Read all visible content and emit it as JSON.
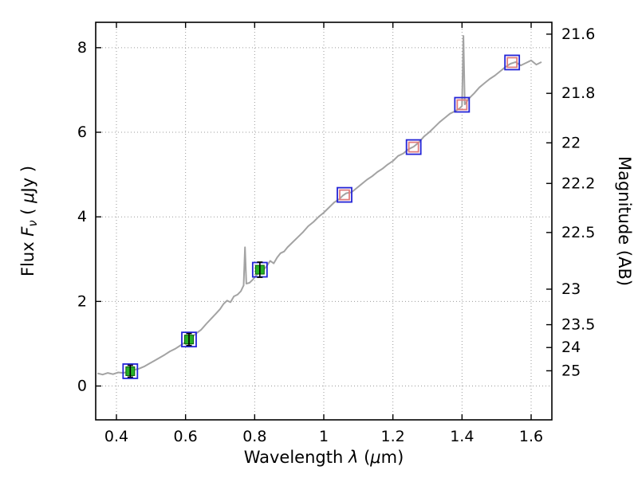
{
  "figure": {
    "background": "#ffffff"
  },
  "chart_data": {
    "type": "line+scatter",
    "title": "",
    "xlabel": "Wavelength λ (μm)",
    "ylabel": "Flux Fν ( μJy )",
    "ylabel_right": "Magnitude (AB)",
    "xlabel_parts": [
      {
        "t": "Wavelength  ",
        "i": false
      },
      {
        "t": "λ",
        "i": true
      },
      {
        "t": " (",
        "i": false
      },
      {
        "t": "μ",
        "i": true
      },
      {
        "t": "m)",
        "i": false
      }
    ],
    "ylabel_parts": [
      {
        "t": "Flux  ",
        "i": false
      },
      {
        "t": "F",
        "i": true
      },
      {
        "t": "ν",
        "i": true,
        "sub": true
      },
      {
        "t": "  ( ",
        "i": false
      },
      {
        "t": "μ",
        "i": true
      },
      {
        "t": "Jy )",
        "i": false
      }
    ],
    "xlim": [
      0.34,
      1.66
    ],
    "ylim": [
      -0.8,
      8.6
    ],
    "x_ticks": [
      {
        "v": 0.4,
        "label": "0.4"
      },
      {
        "v": 0.6,
        "label": "0.6"
      },
      {
        "v": 0.8,
        "label": "0.8"
      },
      {
        "v": 1.0,
        "label": "1"
      },
      {
        "v": 1.2,
        "label": "1.2"
      },
      {
        "v": 1.4,
        "label": "1.4"
      },
      {
        "v": 1.6,
        "label": "1.6"
      }
    ],
    "y_ticks_left": [
      {
        "v": 0,
        "label": "0"
      },
      {
        "v": 2,
        "label": "2"
      },
      {
        "v": 4,
        "label": "4"
      },
      {
        "v": 6,
        "label": "6"
      },
      {
        "v": 8,
        "label": "8"
      }
    ],
    "y_ticks_right": [
      {
        "flux": 8.32,
        "label": "21.6"
      },
      {
        "flux": 6.92,
        "label": "21.8"
      },
      {
        "flux": 5.75,
        "label": "22"
      },
      {
        "flux": 4.79,
        "label": "22.2"
      },
      {
        "flux": 3.63,
        "label": "22.5"
      },
      {
        "flux": 2.29,
        "label": "23"
      },
      {
        "flux": 1.45,
        "label": "23.5"
      },
      {
        "flux": 0.91,
        "label": "24"
      },
      {
        "flux": 0.36,
        "label": "25"
      }
    ],
    "grid": {
      "style": "dotted",
      "color": "#9a9a9a"
    },
    "spectrum": {
      "color": "#a3a3a3",
      "points": [
        [
          0.345,
          0.3
        ],
        [
          0.36,
          0.27
        ],
        [
          0.375,
          0.31
        ],
        [
          0.39,
          0.28
        ],
        [
          0.405,
          0.32
        ],
        [
          0.42,
          0.31
        ],
        [
          0.435,
          0.34
        ],
        [
          0.45,
          0.38
        ],
        [
          0.465,
          0.41
        ],
        [
          0.48,
          0.46
        ],
        [
          0.495,
          0.53
        ],
        [
          0.51,
          0.6
        ],
        [
          0.525,
          0.67
        ],
        [
          0.54,
          0.74
        ],
        [
          0.555,
          0.82
        ],
        [
          0.57,
          0.88
        ],
        [
          0.585,
          0.96
        ],
        [
          0.6,
          1.04
        ],
        [
          0.615,
          1.12
        ],
        [
          0.63,
          1.24
        ],
        [
          0.645,
          1.33
        ],
        [
          0.66,
          1.47
        ],
        [
          0.675,
          1.6
        ],
        [
          0.69,
          1.73
        ],
        [
          0.7,
          1.82
        ],
        [
          0.71,
          1.94
        ],
        [
          0.72,
          2.02
        ],
        [
          0.73,
          1.98
        ],
        [
          0.74,
          2.12
        ],
        [
          0.75,
          2.16
        ],
        [
          0.76,
          2.24
        ],
        [
          0.768,
          2.38
        ],
        [
          0.772,
          3.28
        ],
        [
          0.776,
          2.42
        ],
        [
          0.785,
          2.44
        ],
        [
          0.795,
          2.52
        ],
        [
          0.805,
          2.62
        ],
        [
          0.815,
          2.7
        ],
        [
          0.825,
          2.74
        ],
        [
          0.835,
          2.84
        ],
        [
          0.845,
          2.96
        ],
        [
          0.855,
          2.9
        ],
        [
          0.865,
          3.04
        ],
        [
          0.875,
          3.14
        ],
        [
          0.885,
          3.18
        ],
        [
          0.895,
          3.28
        ],
        [
          0.91,
          3.4
        ],
        [
          0.925,
          3.52
        ],
        [
          0.94,
          3.64
        ],
        [
          0.955,
          3.78
        ],
        [
          0.97,
          3.88
        ],
        [
          0.985,
          4.0
        ],
        [
          1.0,
          4.1
        ],
        [
          1.015,
          4.22
        ],
        [
          1.03,
          4.34
        ],
        [
          1.045,
          4.42
        ],
        [
          1.055,
          4.5
        ],
        [
          1.065,
          4.56
        ],
        [
          1.08,
          4.58
        ],
        [
          1.095,
          4.68
        ],
        [
          1.11,
          4.78
        ],
        [
          1.125,
          4.88
        ],
        [
          1.14,
          4.96
        ],
        [
          1.155,
          5.06
        ],
        [
          1.17,
          5.14
        ],
        [
          1.185,
          5.24
        ],
        [
          1.2,
          5.32
        ],
        [
          1.215,
          5.44
        ],
        [
          1.23,
          5.5
        ],
        [
          1.245,
          5.6
        ],
        [
          1.26,
          5.66
        ],
        [
          1.275,
          5.76
        ],
        [
          1.29,
          5.9
        ],
        [
          1.305,
          6.0
        ],
        [
          1.32,
          6.12
        ],
        [
          1.335,
          6.24
        ],
        [
          1.35,
          6.34
        ],
        [
          1.365,
          6.44
        ],
        [
          1.38,
          6.5
        ],
        [
          1.392,
          6.56
        ],
        [
          1.4,
          6.62
        ],
        [
          1.404,
          8.28
        ],
        [
          1.408,
          6.66
        ],
        [
          1.42,
          6.8
        ],
        [
          1.435,
          6.92
        ],
        [
          1.45,
          7.06
        ],
        [
          1.465,
          7.16
        ],
        [
          1.48,
          7.26
        ],
        [
          1.495,
          7.34
        ],
        [
          1.51,
          7.44
        ],
        [
          1.525,
          7.54
        ],
        [
          1.54,
          7.62
        ],
        [
          1.555,
          7.66
        ],
        [
          1.57,
          7.58
        ],
        [
          1.585,
          7.64
        ],
        [
          1.6,
          7.7
        ],
        [
          1.615,
          7.6
        ],
        [
          1.63,
          7.66
        ]
      ]
    },
    "observed_points": [
      {
        "x": 0.44,
        "y": 0.35,
        "yerr": 0.14
      },
      {
        "x": 0.61,
        "y": 1.1,
        "yerr": 0.14
      },
      {
        "x": 0.815,
        "y": 2.75,
        "yerr": 0.18
      }
    ],
    "model_points": [
      {
        "x": 1.06,
        "y": 4.52
      },
      {
        "x": 1.26,
        "y": 5.65
      },
      {
        "x": 1.4,
        "y": 6.65
      },
      {
        "x": 1.545,
        "y": 7.65
      }
    ],
    "colors": {
      "outer_square": "#2323d6",
      "observed": "#28b028",
      "observed_edge": "#056405",
      "model": "#e07d7d",
      "errorbar": "#000000",
      "axis": "#000000"
    }
  }
}
